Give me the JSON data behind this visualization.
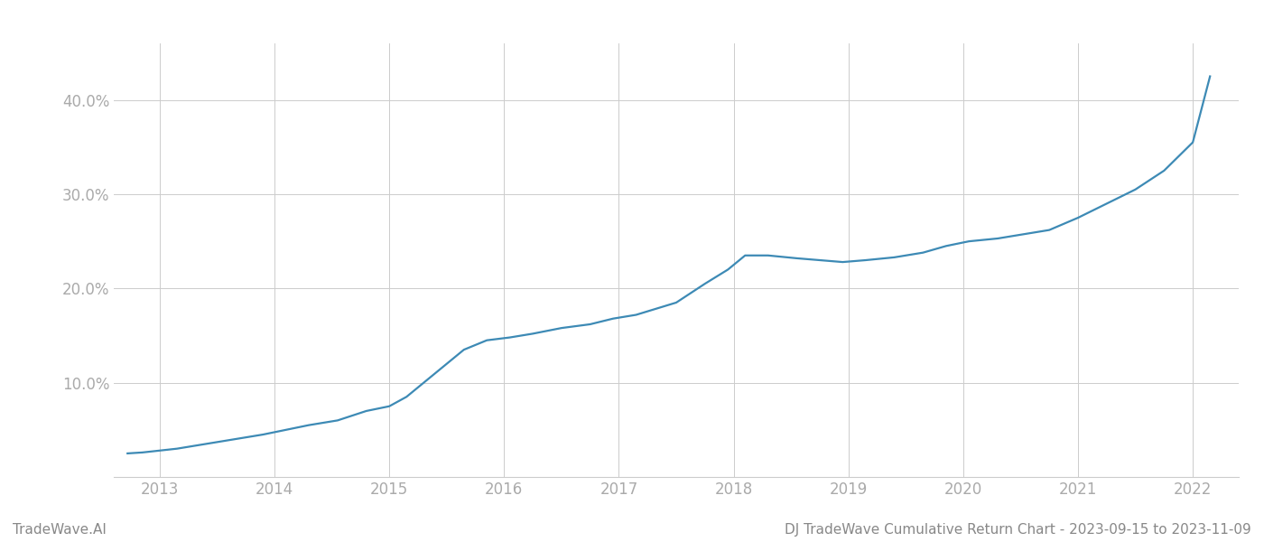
{
  "x_values": [
    2012.72,
    2012.85,
    2013.0,
    2013.15,
    2013.4,
    2013.65,
    2013.9,
    2014.1,
    2014.3,
    2014.55,
    2014.8,
    2015.0,
    2015.15,
    2015.3,
    2015.5,
    2015.65,
    2015.85,
    2016.05,
    2016.25,
    2016.5,
    2016.75,
    2016.95,
    2017.15,
    2017.5,
    2017.75,
    2017.95,
    2018.1,
    2018.3,
    2018.55,
    2018.75,
    2018.95,
    2019.15,
    2019.4,
    2019.65,
    2019.85,
    2020.05,
    2020.3,
    2020.55,
    2020.75,
    2021.0,
    2021.25,
    2021.5,
    2021.75,
    2022.0,
    2022.15
  ],
  "y_values": [
    2.5,
    2.6,
    2.8,
    3.0,
    3.5,
    4.0,
    4.5,
    5.0,
    5.5,
    6.0,
    7.0,
    7.5,
    8.5,
    10.0,
    12.0,
    13.5,
    14.5,
    14.8,
    15.2,
    15.8,
    16.2,
    16.8,
    17.2,
    18.5,
    20.5,
    22.0,
    23.5,
    23.5,
    23.2,
    23.0,
    22.8,
    23.0,
    23.3,
    23.8,
    24.5,
    25.0,
    25.3,
    25.8,
    26.2,
    27.5,
    29.0,
    30.5,
    32.5,
    35.5,
    42.5
  ],
  "line_color": "#3d8ab5",
  "line_width": 1.6,
  "xticks": [
    2013,
    2014,
    2015,
    2016,
    2017,
    2018,
    2019,
    2020,
    2021,
    2022
  ],
  "yticks": [
    10.0,
    20.0,
    30.0,
    40.0
  ],
  "ytick_labels": [
    "10.0%",
    "20.0%",
    "30.0%",
    "40.0%"
  ],
  "xlim": [
    2012.6,
    2022.4
  ],
  "ylim": [
    0,
    46
  ],
  "grid_color": "#cccccc",
  "bg_color": "#ffffff",
  "footer_left": "TradeWave.AI",
  "footer_right": "DJ TradeWave Cumulative Return Chart - 2023-09-15 to 2023-11-09",
  "footer_color": "#888888",
  "footer_fontsize": 11,
  "tick_color": "#aaaaaa",
  "tick_fontsize": 12
}
